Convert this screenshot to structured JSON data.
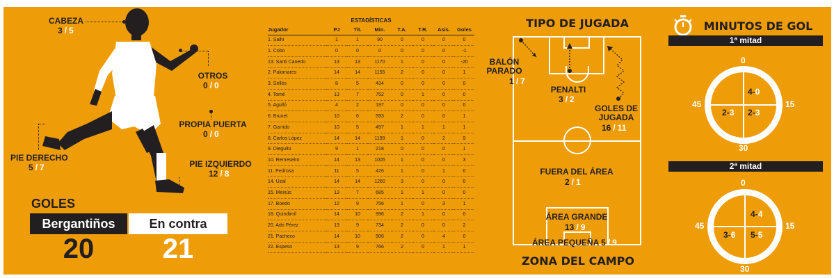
{
  "goals": {
    "cabeza": {
      "label": "CABEZA",
      "for": "3",
      "against": "5"
    },
    "otros": {
      "label": "OTROS",
      "for": "0",
      "against": "0"
    },
    "propia_puerta": {
      "label": "PROPIA PUERTA",
      "for": "0",
      "against": "0"
    },
    "pie_derecho": {
      "label": "PIE DERECHO",
      "for": "5",
      "against": "7"
    },
    "pie_izquierdo": {
      "label": "PIE IZQUIERDO",
      "for": "12",
      "against": "8"
    },
    "sep": "/",
    "title": "GOLES",
    "team_label": "Bergantiños",
    "team_value": "20",
    "against_label": "En contra",
    "against_value": "21"
  },
  "stats": {
    "title": "ESTADÍSTICAS",
    "columns": [
      "Jugador",
      "PJ",
      "Tit.",
      "Min.",
      "T.A.",
      "T.R.",
      "Asis.",
      "Goles"
    ],
    "rows": [
      [
        "1. Salhi",
        "1",
        "1",
        "90",
        "0",
        "0",
        "0",
        "0"
      ],
      [
        "1. Cobo",
        "0",
        "0",
        "0",
        "0",
        "0",
        "0",
        "-1"
      ],
      [
        "13. Santi Canedo",
        "13",
        "13",
        "1170",
        "1",
        "0",
        "0",
        "-20"
      ],
      [
        "2. Palomares",
        "14",
        "14",
        "1155",
        "2",
        "0",
        "0",
        "1"
      ],
      [
        "3. Sellés",
        "8",
        "5",
        "434",
        "0",
        "0",
        "0",
        "0"
      ],
      [
        "4. Tomé",
        "13",
        "7",
        "752",
        "0",
        "1",
        "0",
        "0"
      ],
      [
        "5. Agulló",
        "4",
        "2",
        "197",
        "0",
        "0",
        "0",
        "0"
      ],
      [
        "6. Brunet",
        "10",
        "6",
        "593",
        "2",
        "0",
        "0",
        "1"
      ],
      [
        "7. Garrido",
        "10",
        "5",
        "497",
        "1",
        "1",
        "1",
        "1"
      ],
      [
        "8. Carlos López",
        "14",
        "14",
        "1199",
        "1",
        "0",
        "2",
        "9"
      ],
      [
        "9. Dieguito",
        "9",
        "1",
        "218",
        "0",
        "0",
        "0",
        "1"
      ],
      [
        "10. Remeseiro",
        "14",
        "13",
        "1005",
        "1",
        "0",
        "0",
        "3"
      ],
      [
        "11. Pedrosa",
        "11",
        "5",
        "426",
        "1",
        "0",
        "1",
        "0"
      ],
      [
        "14. Uzal",
        "14",
        "14",
        "1260",
        "3",
        "0",
        "0",
        "0"
      ],
      [
        "15. Meixús",
        "13",
        "7",
        "685",
        "1",
        "1",
        "0",
        "0"
      ],
      [
        "17. Boedo",
        "12",
        "9",
        "756",
        "1",
        "0",
        "3",
        "1"
      ],
      [
        "18. Quindimil",
        "14",
        "10",
        "996",
        "2",
        "1",
        "0",
        "0"
      ],
      [
        "20. Adri Pérez",
        "13",
        "9",
        "734",
        "2",
        "0",
        "0",
        "2"
      ],
      [
        "21. Pacheco",
        "14",
        "10",
        "906",
        "2",
        "0",
        "4",
        "0"
      ],
      [
        "22. Espeso",
        "13",
        "9",
        "766",
        "2",
        "0",
        "1",
        "1"
      ]
    ]
  },
  "pitch": {
    "title": "TIPO DE JUGADA",
    "footer": "ZONA DEL CAMPO",
    "balon_parado": {
      "label1": "BALÓN",
      "label2": "PARADO",
      "for": "1",
      "against": "7"
    },
    "penalti": {
      "label": "PENALTI",
      "for": "3",
      "against": "2"
    },
    "goles_jugada": {
      "label1": "GOLES DE",
      "label2": "JUGADA",
      "for": "16",
      "against": "11"
    },
    "fuera_area": {
      "label": "FUERA DEL ÁREA",
      "for": "2",
      "against": "1"
    },
    "area_grande": {
      "label": "ÁREA GRANDE",
      "for": "13",
      "against": "9"
    },
    "area_pequena": {
      "label": "ÁREA PEQUEÑA",
      "for": "5",
      "against": "9"
    }
  },
  "minutes": {
    "title": "MINUTOS DE GOL",
    "first": {
      "label": "1ª mitad",
      "q1": {
        "for": "4",
        "against": "0"
      },
      "q2": {
        "for": "2",
        "against": "3"
      },
      "q3": {
        "for": "2",
        "against": "3"
      }
    },
    "second": {
      "label": "2ª mitad",
      "q1": {
        "for": "4",
        "against": "4"
      },
      "q2": {
        "for": "5",
        "against": "5"
      },
      "q3": {
        "for": "3",
        "against": "6"
      }
    },
    "ticks": {
      "top": "0",
      "right": "15",
      "bottom": "30",
      "left": "45"
    }
  },
  "colors": {
    "background": "#ee9c07",
    "dark": "#231f20",
    "white": "#ffffff"
  }
}
